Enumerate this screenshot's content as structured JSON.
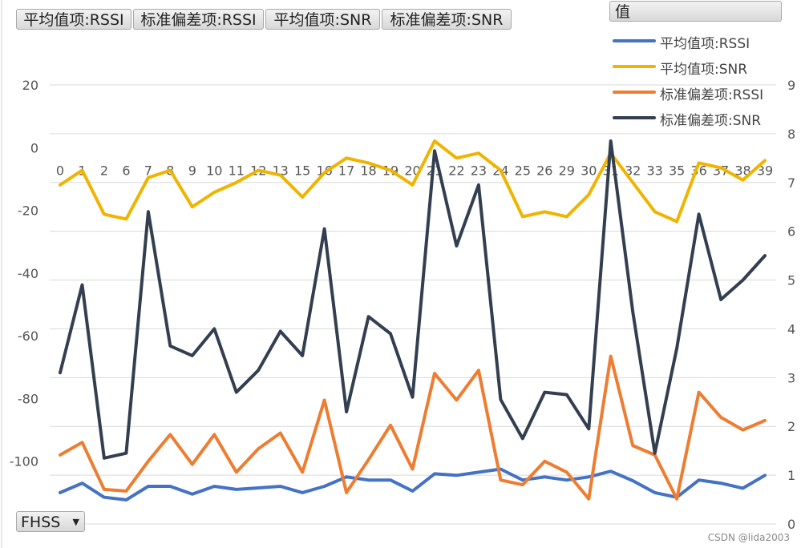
{
  "field_buttons": [
    {
      "label": "平均值项:RSSI"
    },
    {
      "label": "标准偏差项:RSSI"
    },
    {
      "label": "平均值项:SNR"
    },
    {
      "label": "标准偏差项:SNR"
    }
  ],
  "legend": {
    "header": "值",
    "entries": [
      {
        "label": "平均值项:RSSI",
        "color": "#4472C4"
      },
      {
        "label": "平均值项:SNR",
        "color": "#F0B400"
      },
      {
        "label": "标准偏差项:RSSI",
        "color": "#ED7D31"
      },
      {
        "label": "标准偏差项:SNR",
        "color": "#333F50"
      }
    ]
  },
  "filter_button": {
    "label": "FHSS",
    "icon": "dropdown-arrow-icon"
  },
  "watermark": "CSDN @lida2003",
  "chart_data": {
    "type": "line",
    "categories": [
      "0",
      "1",
      "2",
      "6",
      "7",
      "8",
      "9",
      "10",
      "11",
      "12",
      "13",
      "15",
      "16",
      "17",
      "18",
      "19",
      "20",
      "21",
      "22",
      "23",
      "24",
      "25",
      "26",
      "29",
      "30",
      "31",
      "32",
      "33",
      "35",
      "36",
      "37",
      "38",
      "39"
    ],
    "y_left": {
      "ticks": [
        "20",
        "0",
        "-20",
        "-40",
        "-60",
        "-80",
        "-100"
      ],
      "range": [
        -120,
        20
      ]
    },
    "y_right": {
      "ticks": [
        "9",
        "8",
        "7",
        "6",
        "5",
        "4",
        "3",
        "2",
        "1",
        "0"
      ],
      "range": [
        0,
        9
      ]
    },
    "grid": true,
    "legend_position": "top-right",
    "series": [
      {
        "name": "平均值项:RSSI",
        "axis": "left",
        "color": "#4472C4",
        "values": [
          -110,
          -107,
          -111.5,
          -112.3,
          -108,
          -108,
          -110.5,
          -108,
          -109,
          -108.5,
          -108,
          -110,
          -108,
          -105,
          -106,
          -106,
          -109.5,
          -104,
          -104.5,
          -103.5,
          -102.5,
          -106,
          -105,
          -106,
          -105,
          -103.2,
          -106.2,
          -110,
          -111.5,
          -106,
          -107,
          -108.6,
          -104.5
        ]
      },
      {
        "name": "平均值项:SNR",
        "axis": "right",
        "color": "#F0B400",
        "values": [
          6.95,
          7.25,
          6.35,
          6.25,
          7.1,
          7.25,
          6.5,
          6.8,
          7.0,
          7.25,
          7.15,
          6.7,
          7.2,
          7.5,
          7.4,
          7.25,
          6.95,
          7.85,
          7.5,
          7.6,
          7.25,
          6.3,
          6.4,
          6.3,
          6.75,
          7.6,
          7.0,
          6.4,
          6.2,
          7.4,
          7.3,
          7.05,
          7.45
        ]
      },
      {
        "name": "标准偏差项:RSSI",
        "axis": "left",
        "color": "#ED7D31",
        "values": [
          -98,
          -94,
          -109,
          -109.5,
          -100,
          -91.5,
          -101,
          -91.5,
          -103.5,
          -96,
          -91,
          -103.5,
          -80.5,
          -110,
          -99.5,
          -88.5,
          -102.5,
          -72,
          -80.5,
          -71,
          -106,
          -107.5,
          -100,
          -103.5,
          -112,
          -66.5,
          -95,
          -98,
          -112,
          -78,
          -86,
          -90,
          -87
        ]
      },
      {
        "name": "标准偏差项:SNR",
        "axis": "right",
        "color": "#333F50",
        "values": [
          3.1,
          4.9,
          1.35,
          1.45,
          6.4,
          3.65,
          3.45,
          4.0,
          2.7,
          3.15,
          3.95,
          3.45,
          6.05,
          2.3,
          4.25,
          3.9,
          2.6,
          7.65,
          5.7,
          6.95,
          2.55,
          1.75,
          2.7,
          2.65,
          1.95,
          7.85,
          4.35,
          1.45,
          3.6,
          6.35,
          4.6,
          5.0,
          5.5
        ]
      }
    ]
  }
}
